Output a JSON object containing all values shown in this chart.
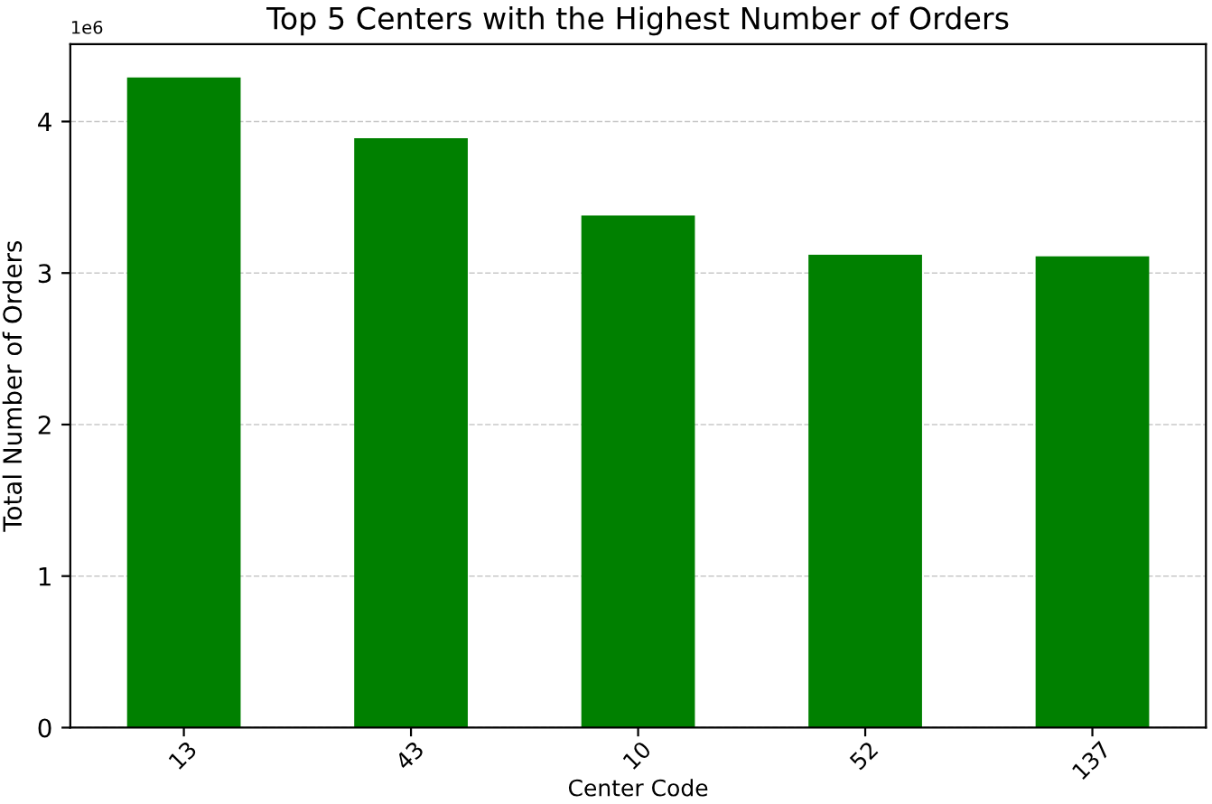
{
  "chart_data": {
    "type": "bar",
    "title": "Top 5 Centers with the Highest Number of Orders",
    "xlabel": "Center Code",
    "ylabel": "Total Number of Orders",
    "categories": [
      "13",
      "43",
      "10",
      "52",
      "137"
    ],
    "values": [
      4.29,
      3.89,
      3.38,
      3.12,
      3.11
    ],
    "color": "#008000",
    "ylim": [
      0,
      4.51
    ],
    "yticks": [
      0,
      1,
      2,
      3,
      4
    ],
    "annotations": [
      "1e6"
    ],
    "grid": "y"
  }
}
